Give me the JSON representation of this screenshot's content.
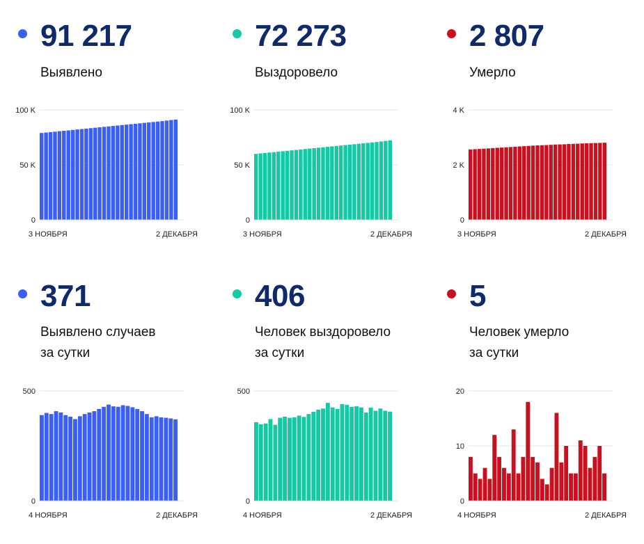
{
  "colors": {
    "detected": "#3b5ff5",
    "recovered": "#14c9a3",
    "died": "#c8101e",
    "headline": "#0f2a6b"
  },
  "panels": [
    {
      "id": "detected-total",
      "value": "91 217",
      "label_lines": [
        "Выявлено"
      ],
      "color": "#3b5ff5",
      "chart_data": {
        "type": "bar",
        "title": "",
        "xlabel": "",
        "ylabel": "",
        "ylim": [
          0,
          100000
        ],
        "yticks": [
          {
            "value": 0,
            "label": "0"
          },
          {
            "value": 50000,
            "label": "50 K"
          },
          {
            "value": 100000,
            "label": "100 K"
          }
        ],
        "x_start_label": "3 НОЯБРЯ",
        "x_end_label": "2 ДЕКАБРЯ",
        "grid": true,
        "values": [
          79000,
          79400,
          79800,
          80200,
          80600,
          81000,
          81400,
          81800,
          82200,
          82600,
          83000,
          83400,
          83800,
          84200,
          84600,
          85000,
          85400,
          85800,
          86200,
          86600,
          87000,
          87400,
          87800,
          88200,
          88600,
          89000,
          89400,
          89800,
          90300,
          90800,
          91217
        ]
      }
    },
    {
      "id": "recovered-total",
      "value": "72 273",
      "label_lines": [
        "Выздоровело"
      ],
      "color": "#14c9a3",
      "chart_data": {
        "type": "bar",
        "title": "",
        "xlabel": "",
        "ylabel": "",
        "ylim": [
          0,
          100000
        ],
        "yticks": [
          {
            "value": 0,
            "label": "0"
          },
          {
            "value": 50000,
            "label": "50 K"
          },
          {
            "value": 100000,
            "label": "100 K"
          }
        ],
        "x_start_label": "3 НОЯБРЯ",
        "x_end_label": "2 ДЕКАБРЯ",
        "grid": true,
        "values": [
          60000,
          60400,
          60800,
          61200,
          61600,
          62000,
          62400,
          62800,
          63200,
          63600,
          64000,
          64400,
          64800,
          65200,
          65600,
          66000,
          66400,
          66800,
          67200,
          67600,
          68000,
          68400,
          68800,
          69200,
          69600,
          70000,
          70400,
          70800,
          71300,
          71800,
          72273
        ]
      }
    },
    {
      "id": "died-total",
      "value": "2 807",
      "label_lines": [
        "Умерло"
      ],
      "color": "#c8101e",
      "chart_data": {
        "type": "bar",
        "title": "",
        "xlabel": "",
        "ylabel": "",
        "ylim": [
          0,
          4000
        ],
        "yticks": [
          {
            "value": 0,
            "label": "0"
          },
          {
            "value": 2000,
            "label": "2 K"
          },
          {
            "value": 4000,
            "label": "4 K"
          }
        ],
        "x_start_label": "3 НОЯБРЯ",
        "x_end_label": "2 ДЕКАБРЯ",
        "grid": true,
        "values": [
          2560,
          2570,
          2580,
          2590,
          2600,
          2610,
          2620,
          2630,
          2640,
          2650,
          2660,
          2670,
          2680,
          2690,
          2700,
          2710,
          2715,
          2720,
          2730,
          2740,
          2745,
          2750,
          2760,
          2765,
          2770,
          2780,
          2785,
          2790,
          2795,
          2800,
          2807
        ]
      }
    },
    {
      "id": "detected-daily",
      "value": "371",
      "label_lines": [
        "Выявлено случаев",
        "за сутки"
      ],
      "color": "#3b5ff5",
      "chart_data": {
        "type": "bar",
        "title": "",
        "xlabel": "",
        "ylabel": "",
        "ylim": [
          0,
          500
        ],
        "yticks": [
          {
            "value": 0,
            "label": "0"
          },
          {
            "value": 500,
            "label": "500"
          }
        ],
        "x_start_label": "4 НОЯБРЯ",
        "x_end_label": "2 ДЕКАБРЯ",
        "grid": true,
        "values": [
          390,
          400,
          395,
          408,
          402,
          390,
          383,
          372,
          385,
          395,
          402,
          408,
          418,
          428,
          438,
          430,
          428,
          435,
          432,
          426,
          418,
          408,
          395,
          380,
          385,
          380,
          378,
          375,
          371
        ]
      }
    },
    {
      "id": "recovered-daily",
      "value": "406",
      "label_lines": [
        "Человек выздоровело",
        "за сутки"
      ],
      "color": "#14c9a3",
      "chart_data": {
        "type": "bar",
        "title": "",
        "xlabel": "",
        "ylabel": "",
        "ylim": [
          0,
          500
        ],
        "yticks": [
          {
            "value": 0,
            "label": "0"
          },
          {
            "value": 500,
            "label": "500"
          }
        ],
        "x_start_label": "4 НОЯБРЯ",
        "x_end_label": "2 ДЕКАБРЯ",
        "grid": true,
        "values": [
          358,
          348,
          352,
          372,
          346,
          378,
          383,
          378,
          380,
          388,
          382,
          395,
          405,
          415,
          420,
          446,
          425,
          418,
          440,
          437,
          428,
          430,
          425,
          402,
          424,
          410,
          420,
          410,
          406
        ]
      }
    },
    {
      "id": "died-daily",
      "value": "5",
      "label_lines": [
        "Человек умерло",
        "за сутки"
      ],
      "color": "#c8101e",
      "chart_data": {
        "type": "bar",
        "title": "",
        "xlabel": "",
        "ylabel": "",
        "ylim": [
          0,
          20
        ],
        "yticks": [
          {
            "value": 0,
            "label": "0"
          },
          {
            "value": 10,
            "label": "10"
          },
          {
            "value": 20,
            "label": "20"
          }
        ],
        "x_start_label": "4 НОЯБРЯ",
        "x_end_label": "2 ДЕКАБРЯ",
        "grid": true,
        "values": [
          8,
          5,
          4,
          6,
          4,
          12,
          8,
          6,
          5,
          13,
          5,
          8,
          18,
          8,
          7,
          4,
          3,
          6,
          16,
          7,
          10,
          5,
          5,
          11,
          10,
          6,
          8,
          10,
          5
        ]
      }
    }
  ]
}
